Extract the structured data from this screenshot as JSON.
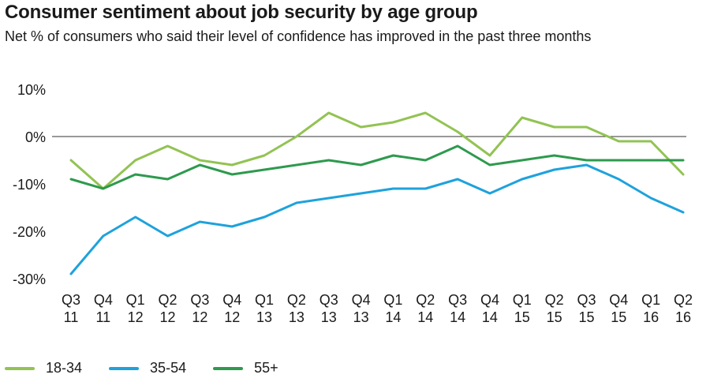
{
  "chart_data": {
    "type": "line",
    "title": "Consumer sentiment about job security by age group",
    "subtitle": "Net % of consumers who said their level of confidence has improved in the past three months",
    "ylim": [
      -30,
      10
    ],
    "yticks": [
      10,
      0,
      -10,
      -20,
      -30
    ],
    "ytick_labels": [
      "10%",
      "0%",
      "-10%",
      "-20%",
      "-30%"
    ],
    "categories": [
      {
        "q": "Q3",
        "y": "11"
      },
      {
        "q": "Q4",
        "y": "11"
      },
      {
        "q": "Q1",
        "y": "12"
      },
      {
        "q": "Q2",
        "y": "12"
      },
      {
        "q": "Q3",
        "y": "12"
      },
      {
        "q": "Q4",
        "y": "12"
      },
      {
        "q": "Q1",
        "y": "13"
      },
      {
        "q": "Q2",
        "y": "13"
      },
      {
        "q": "Q3",
        "y": "13"
      },
      {
        "q": "Q4",
        "y": "13"
      },
      {
        "q": "Q1",
        "y": "14"
      },
      {
        "q": "Q2",
        "y": "14"
      },
      {
        "q": "Q3",
        "y": "14"
      },
      {
        "q": "Q4",
        "y": "14"
      },
      {
        "q": "Q1",
        "y": "15"
      },
      {
        "q": "Q2",
        "y": "15"
      },
      {
        "q": "Q3",
        "y": "15"
      },
      {
        "q": "Q4",
        "y": "15"
      },
      {
        "q": "Q1",
        "y": "16"
      },
      {
        "q": "Q2",
        "y": "16"
      }
    ],
    "series": [
      {
        "name": "18-34",
        "color": "#92c353",
        "values": [
          -5,
          -11,
          -5,
          -2,
          -5,
          -6,
          -4,
          0,
          5,
          2,
          3,
          5,
          1,
          -4,
          4,
          2,
          2,
          -1,
          -1,
          -8
        ]
      },
      {
        "name": "35-54",
        "color": "#1ea2dc",
        "values": [
          -29,
          -21,
          -17,
          -21,
          -18,
          -19,
          -17,
          -14,
          -13,
          -12,
          -11,
          -11,
          -9,
          -12,
          -9,
          -7,
          -6,
          -9,
          -13,
          -16
        ]
      },
      {
        "name": "55+",
        "color": "#2e9a4e",
        "values": [
          -9,
          -11,
          -8,
          -9,
          -6,
          -8,
          -7,
          -6,
          -5,
          -6,
          -4,
          -5,
          -2,
          -6,
          -5,
          -4,
          -5,
          -5,
          -5,
          -5
        ]
      }
    ],
    "grid": false,
    "zero_line": true,
    "legend_position": "bottom-left"
  }
}
